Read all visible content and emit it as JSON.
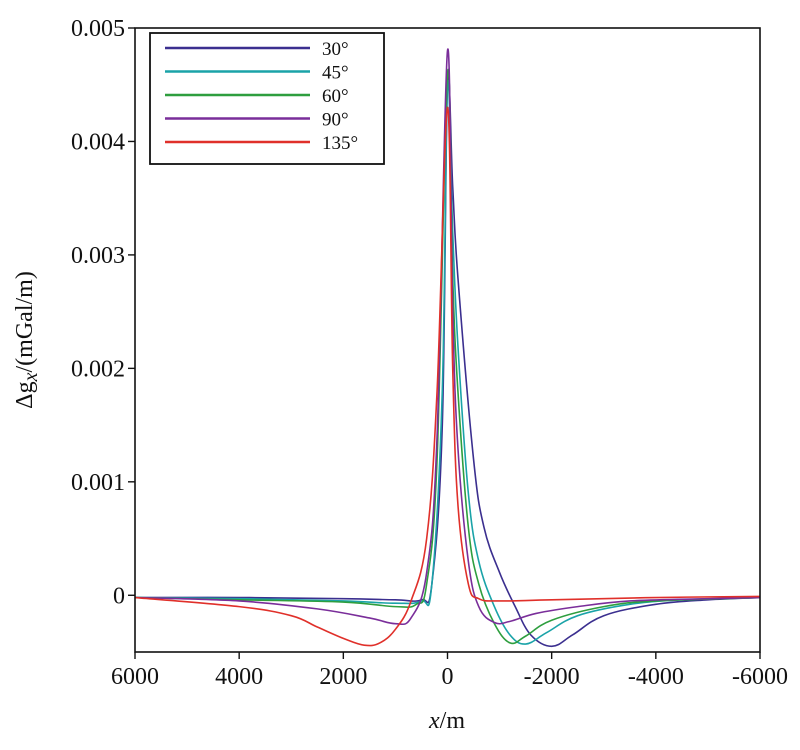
{
  "chart_data": {
    "type": "line",
    "xlabel_main": "x",
    "xlabel_unit": "/m",
    "ylabel_prefix": "Δg",
    "ylabel_sub": "x",
    "ylabel_unit": "/(mGal/m)",
    "xlim": [
      6000,
      -6000
    ],
    "ylim": [
      -0.0005,
      0.005
    ],
    "x_ticks": [
      6000,
      4000,
      2000,
      0,
      -2000,
      -4000,
      -6000
    ],
    "x_tick_labels": [
      "6000",
      "4000",
      "2000",
      "0",
      "-2000",
      "-4000",
      "-6000"
    ],
    "y_ticks": [
      0,
      0.001,
      0.002,
      0.003,
      0.004,
      0.005
    ],
    "y_tick_labels": [
      "0",
      "0.001",
      "0.002",
      "0.003",
      "0.004",
      "0.005"
    ],
    "legend_position": "top-left",
    "grid": false,
    "series": [
      {
        "name": "30°",
        "color": "#3b2f8f",
        "points": [
          [
            6000,
            -2e-05
          ],
          [
            4000,
            -2e-05
          ],
          [
            2000,
            -3e-05
          ],
          [
            1000,
            -4e-05
          ],
          [
            500,
            -4e-05
          ],
          [
            300,
            0.0001
          ],
          [
            100,
            0.0015
          ],
          [
            0,
            0.0045
          ],
          [
            -100,
            0.0036
          ],
          [
            -200,
            0.0028
          ],
          [
            -500,
            0.0012
          ],
          [
            -700,
            0.0006
          ],
          [
            -1000,
            0.0002
          ],
          [
            -1300,
            -0.0001
          ],
          [
            -1600,
            -0.00035
          ],
          [
            -2000,
            -0.00045
          ],
          [
            -2400,
            -0.00035
          ],
          [
            -3000,
            -0.00018
          ],
          [
            -4000,
            -8e-05
          ],
          [
            -5000,
            -4e-05
          ],
          [
            -6000,
            -2e-05
          ]
        ]
      },
      {
        "name": "45°",
        "color": "#1aa3a8",
        "points": [
          [
            6000,
            -2e-05
          ],
          [
            4000,
            -3e-05
          ],
          [
            2000,
            -5e-05
          ],
          [
            1000,
            -7e-05
          ],
          [
            500,
            -5e-05
          ],
          [
            300,
            0.0001
          ],
          [
            100,
            0.0018
          ],
          [
            0,
            0.0045
          ],
          [
            -100,
            0.0032
          ],
          [
            -200,
            0.0022
          ],
          [
            -400,
            0.0009
          ],
          [
            -600,
            0.0003
          ],
          [
            -900,
            -0.0001
          ],
          [
            -1200,
            -0.00035
          ],
          [
            -1500,
            -0.00043
          ],
          [
            -1900,
            -0.00033
          ],
          [
            -2500,
            -0.00018
          ],
          [
            -3500,
            -8e-05
          ],
          [
            -4500,
            -4e-05
          ],
          [
            -6000,
            -2e-05
          ]
        ]
      },
      {
        "name": "60°",
        "color": "#2e9e3e",
        "points": [
          [
            6000,
            -2e-05
          ],
          [
            4000,
            -4e-05
          ],
          [
            2000,
            -6e-05
          ],
          [
            1000,
            -0.0001
          ],
          [
            600,
            -8e-05
          ],
          [
            400,
            0.0001
          ],
          [
            200,
            0.0012
          ],
          [
            0,
            0.0046
          ],
          [
            -100,
            0.0028
          ],
          [
            -200,
            0.0018
          ],
          [
            -400,
            0.0006
          ],
          [
            -600,
            0.0001
          ],
          [
            -900,
            -0.00025
          ],
          [
            -1200,
            -0.00042
          ],
          [
            -1500,
            -0.00036
          ],
          [
            -2000,
            -0.00022
          ],
          [
            -3000,
            -0.0001
          ],
          [
            -4000,
            -5e-05
          ],
          [
            -6000,
            -2e-05
          ]
        ]
      },
      {
        "name": "90°",
        "color": "#7a2e9a",
        "points": [
          [
            6000,
            -2e-05
          ],
          [
            4000,
            -5e-05
          ],
          [
            2500,
            -0.00012
          ],
          [
            1500,
            -0.0002
          ],
          [
            1000,
            -0.00025
          ],
          [
            700,
            -0.0002
          ],
          [
            400,
            0.0002
          ],
          [
            200,
            0.0014
          ],
          [
            0,
            0.0048
          ],
          [
            -100,
            0.0025
          ],
          [
            -200,
            0.0013
          ],
          [
            -400,
            0.0003
          ],
          [
            -600,
            -0.0001
          ],
          [
            -900,
            -0.00024
          ],
          [
            -1200,
            -0.00023
          ],
          [
            -1700,
            -0.00016
          ],
          [
            -2500,
            -0.0001
          ],
          [
            -3500,
            -5e-05
          ],
          [
            -5000,
            -3e-05
          ],
          [
            -6000,
            -2e-05
          ]
        ]
      },
      {
        "name": "135°",
        "color": "#e0302a",
        "points": [
          [
            6000,
            -2e-05
          ],
          [
            4000,
            -0.0001
          ],
          [
            3000,
            -0.00018
          ],
          [
            2500,
            -0.00028
          ],
          [
            2000,
            -0.00038
          ],
          [
            1600,
            -0.00044
          ],
          [
            1300,
            -0.00042
          ],
          [
            1000,
            -0.0003
          ],
          [
            700,
            -5e-05
          ],
          [
            400,
            0.0005
          ],
          [
            200,
            0.0018
          ],
          [
            0,
            0.0043
          ],
          [
            -100,
            0.002
          ],
          [
            -200,
            0.0008
          ],
          [
            -400,
            0.0001
          ],
          [
            -600,
            -3e-05
          ],
          [
            -1000,
            -5e-05
          ],
          [
            -2000,
            -4e-05
          ],
          [
            -4000,
            -2e-05
          ],
          [
            -6000,
            -1e-05
          ]
        ]
      }
    ]
  }
}
